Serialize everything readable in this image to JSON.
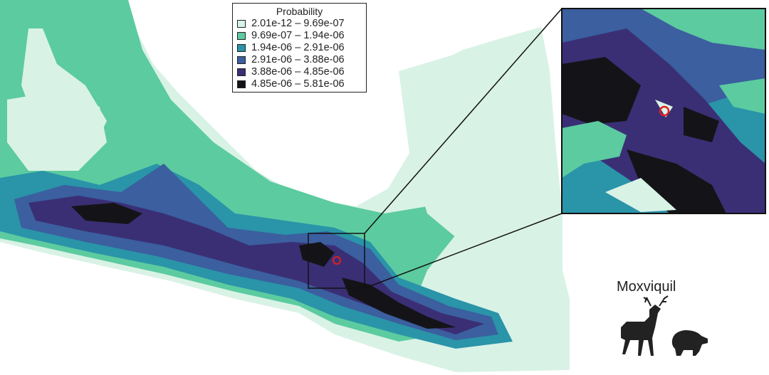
{
  "legend": {
    "title": "Probability",
    "items": [
      {
        "label": "2.01e-12 – 9.69e-07",
        "color": "#d9f2e6"
      },
      {
        "label": "9.69e-07 – 1.94e-06",
        "color": "#5ccba0"
      },
      {
        "label": "1.94e-06 – 2.91e-06",
        "color": "#2a94a8"
      },
      {
        "label": "2.91e-06 – 3.88e-06",
        "color": "#3b5f9f"
      },
      {
        "label": "3.88e-06 – 4.85e-06",
        "color": "#3a2f75"
      },
      {
        "label": "4.85e-06 – 5.81e-06",
        "color": "#141418"
      }
    ]
  },
  "species": {
    "name": "Moxviquil",
    "icons": [
      "deer-silhouette-icon",
      "peccary-silhouette-icon"
    ]
  },
  "marker_color": "#e02020"
}
